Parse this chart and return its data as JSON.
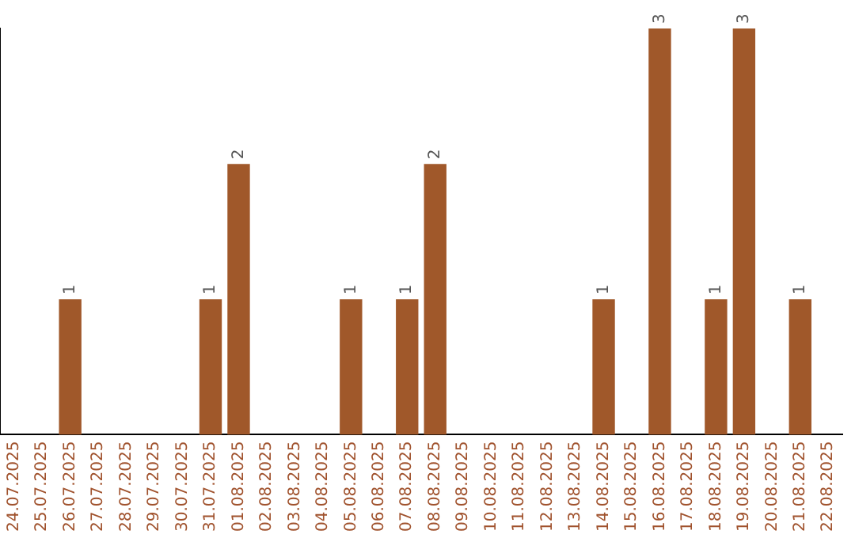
{
  "chart_data": {
    "type": "bar",
    "categories": [
      "24.07.2025",
      "25.07.2025",
      "26.07.2025",
      "27.07.2025",
      "28.07.2025",
      "29.07.2025",
      "30.07.2025",
      "31.07.2025",
      "01.08.2025",
      "02.08.2025",
      "03.08.2025",
      "04.08.2025",
      "05.08.2025",
      "06.08.2025",
      "07.08.2025",
      "08.08.2025",
      "09.08.2025",
      "10.08.2025",
      "11.08.2025",
      "12.08.2025",
      "13.08.2025",
      "14.08.2025",
      "15.08.2025",
      "16.08.2025",
      "17.08.2025",
      "18.08.2025",
      "19.08.2025",
      "20.08.2025",
      "21.08.2025",
      "22.08.2025"
    ],
    "values": [
      0,
      0,
      1,
      0,
      0,
      0,
      0,
      1,
      2,
      0,
      0,
      0,
      1,
      0,
      1,
      2,
      0,
      0,
      0,
      0,
      0,
      1,
      0,
      3,
      0,
      1,
      3,
      0,
      1,
      0
    ],
    "value_labels": [
      null,
      null,
      "1",
      null,
      null,
      null,
      null,
      "1",
      "2",
      null,
      null,
      null,
      "1",
      null,
      "1",
      "2",
      null,
      null,
      null,
      null,
      null,
      "1",
      null,
      "3",
      null,
      "1",
      "3",
      null,
      "1",
      null
    ],
    "color": "#a0582a",
    "ylim": [
      0,
      3
    ],
    "tick_labels": "x",
    "grid": false,
    "legend": false
  }
}
